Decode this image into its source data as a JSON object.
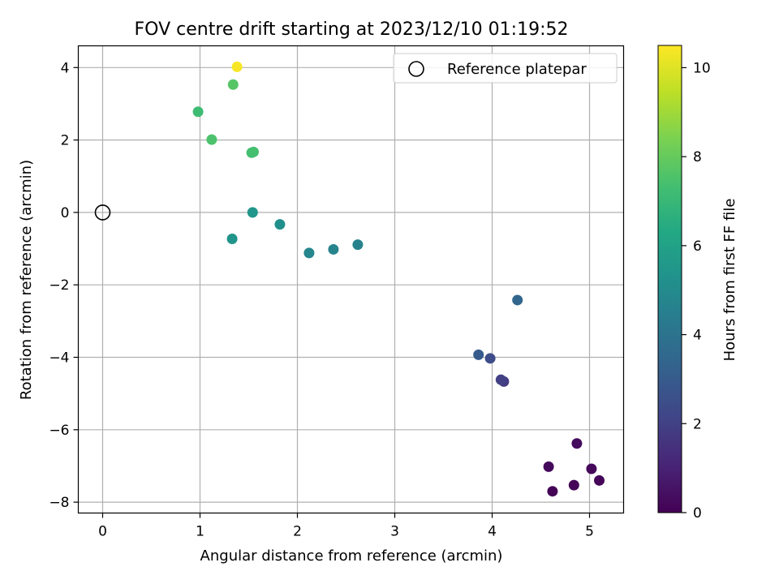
{
  "chart_data": {
    "type": "scatter",
    "title": "FOV centre drift starting at 2023/12/10 01:19:52",
    "xlabel": "Angular distance from reference (arcmin)",
    "ylabel": "Rotation from reference (arcmin)",
    "xlim": [
      -0.25,
      5.35
    ],
    "ylim": [
      -8.3,
      4.6
    ],
    "xticks": [
      0,
      1,
      2,
      3,
      4,
      5
    ],
    "yticks": [
      -8,
      -6,
      -4,
      -2,
      0,
      2,
      4
    ],
    "xtick_labels": [
      "0",
      "1",
      "2",
      "3",
      "4",
      "5"
    ],
    "ytick_labels": [
      "−8",
      "−6",
      "−4",
      "−2",
      "0",
      "2",
      "4"
    ],
    "grid": true,
    "legend": {
      "position": "top-right",
      "entries": [
        {
          "label": "Reference platepar",
          "marker": "open-circle"
        }
      ]
    },
    "reference_point": {
      "x": 0,
      "y": 0
    },
    "colorbar": {
      "label": "Hours from first FF file",
      "colormap": "viridis",
      "range": [
        0,
        10.5
      ],
      "ticks": [
        0,
        2,
        4,
        6,
        8,
        10
      ],
      "tick_labels": [
        "0",
        "2",
        "4",
        "6",
        "8",
        "10"
      ]
    },
    "points": [
      {
        "x": 4.62,
        "y": -7.7,
        "hours": 0.05
      },
      {
        "x": 4.84,
        "y": -7.53,
        "hours": 0.1
      },
      {
        "x": 5.1,
        "y": -7.4,
        "hours": 0.15
      },
      {
        "x": 5.02,
        "y": -7.08,
        "hours": 0.2
      },
      {
        "x": 4.58,
        "y": -7.02,
        "hours": 0.25
      },
      {
        "x": 4.87,
        "y": -6.38,
        "hours": 0.3
      },
      {
        "x": 4.12,
        "y": -4.67,
        "hours": 1.8
      },
      {
        "x": 4.09,
        "y": -4.62,
        "hours": 2.0
      },
      {
        "x": 3.98,
        "y": -4.03,
        "hours": 2.4
      },
      {
        "x": 3.86,
        "y": -3.93,
        "hours": 3.0
      },
      {
        "x": 4.26,
        "y": -2.42,
        "hours": 3.5
      },
      {
        "x": 2.62,
        "y": -0.89,
        "hours": 4.6
      },
      {
        "x": 2.37,
        "y": -1.02,
        "hours": 4.7
      },
      {
        "x": 2.12,
        "y": -1.12,
        "hours": 4.8
      },
      {
        "x": 1.82,
        "y": -0.33,
        "hours": 5.2
      },
      {
        "x": 1.33,
        "y": -0.73,
        "hours": 5.4
      },
      {
        "x": 1.54,
        "y": 0.0,
        "hours": 5.5
      },
      {
        "x": 1.53,
        "y": 1.65,
        "hours": 7.3
      },
      {
        "x": 1.55,
        "y": 1.67,
        "hours": 7.35
      },
      {
        "x": 1.12,
        "y": 2.01,
        "hours": 7.5
      },
      {
        "x": 0.98,
        "y": 2.78,
        "hours": 7.2
      },
      {
        "x": 1.34,
        "y": 3.53,
        "hours": 7.7
      },
      {
        "x": 1.38,
        "y": 4.02,
        "hours": 10.4
      }
    ]
  }
}
